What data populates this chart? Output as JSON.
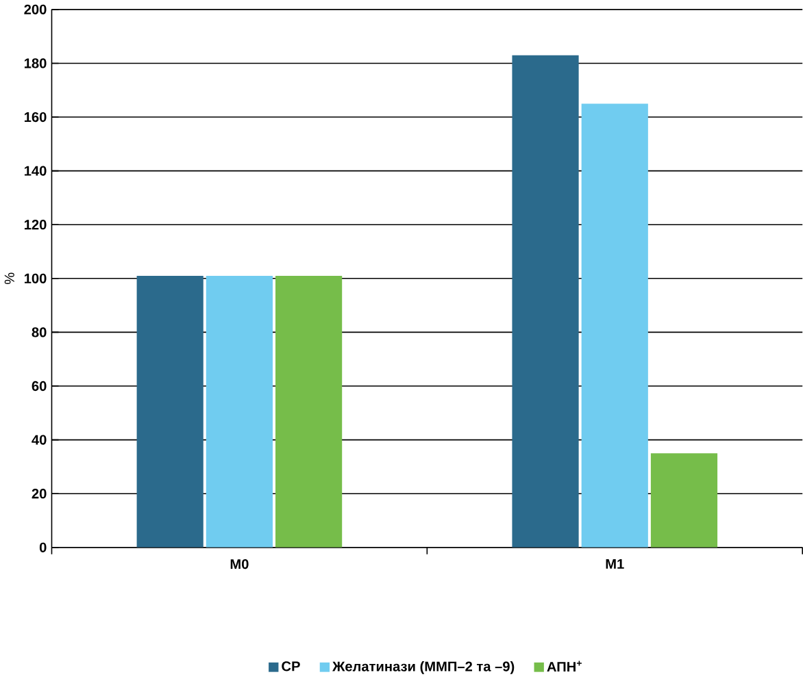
{
  "chart_data": {
    "type": "bar",
    "ylabel": "%",
    "categories": [
      "M0",
      "M1"
    ],
    "series": [
      {
        "name": "СР",
        "color": "#2b6a8c",
        "values": [
          101,
          183
        ]
      },
      {
        "name": "Желатинази (ММП–2 та –9)",
        "color": "#70ccf0",
        "values": [
          101,
          165
        ]
      },
      {
        "name": "АПН$^{+}$",
        "color": "#76bd4a",
        "values": [
          101,
          35
        ]
      }
    ],
    "ylim": [
      0,
      200
    ],
    "yticks": [
      0,
      20,
      40,
      60,
      80,
      100,
      120,
      140,
      160,
      180,
      200
    ],
    "grid": "y",
    "legend": "bottom"
  }
}
